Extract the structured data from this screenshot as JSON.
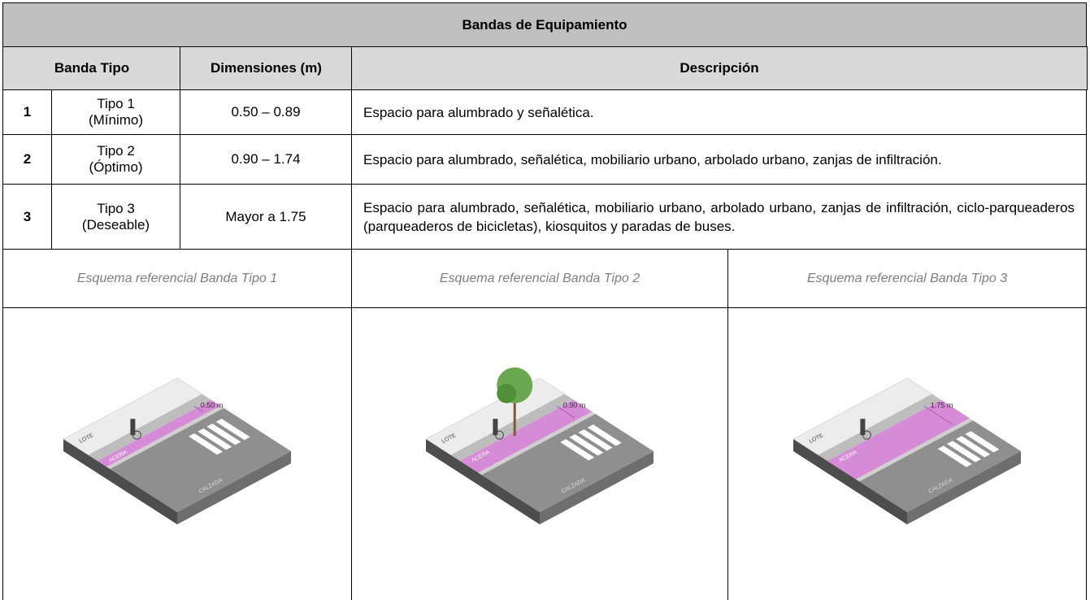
{
  "table": {
    "title": "Bandas de Equipamiento",
    "header": [
      "Banda Tipo",
      "Dimensiones (m)",
      "Descripción"
    ],
    "rows": [
      [
        "1",
        [
          "Tipo 1",
          "(Mínimo)"
        ],
        "0.50 – 0.89",
        "Espacio para alumbrado y señalética."
      ],
      [
        "2",
        [
          "Tipo 2",
          "(Óptimo)"
        ],
        "0.90 – 1.74",
        "Espacio para alumbrado, señalética, mobiliario urbano, arbolado urbano, zanjas de infiltración."
      ],
      [
        "3",
        [
          "Tipo 3",
          "(Deseable)"
        ],
        "Mayor a 1.75",
        "Espacio para alumbrado, señalética, mobiliario urbano, arbolado urbano, zanjas de infiltración, ciclo-parqueaderos (parqueaderos de bicicletas), kiosquitos y paradas de buses."
      ]
    ]
  },
  "schemes": [
    {
      "caption": "Esquema referencial Banda Tipo 1",
      "width_label": "0.50 m",
      "labels": [
        "LOTE",
        "ACERA",
        "CALZADA"
      ]
    },
    {
      "caption": "Esquema referencial Banda Tipo 2",
      "width_label": "0.90 m",
      "labels": [
        "LOTE",
        "ACERA",
        "CALZADA"
      ]
    },
    {
      "caption": "Esquema referencial Banda Tipo 3",
      "width_label": "1.75 m",
      "labels": [
        "LOTE",
        "ACERA",
        "CALZADA"
      ]
    }
  ]
}
